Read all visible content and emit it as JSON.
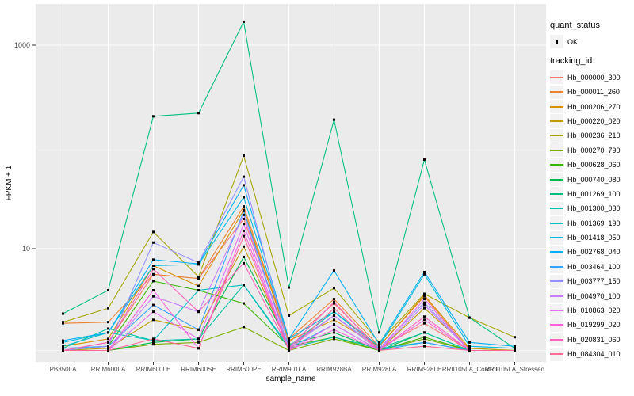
{
  "chart_data": {
    "type": "line",
    "title": "",
    "xlabel": "sample_name",
    "ylabel": "FPKM + 1",
    "y_scale": "log10",
    "y_ticks": [
      {
        "value": 10,
        "label": "10"
      },
      {
        "value": 1000,
        "label": "1000"
      }
    ],
    "y_minor_ticks": [
      1,
      100
    ],
    "ylim": [
      0.9,
      2500
    ],
    "grid": true,
    "panel_bg": "#EBEBEB",
    "grid_color": "#FFFFFF",
    "point_color": "#000000",
    "categories": [
      "PB350LA",
      "RRIM600LA",
      "RRIM600LE",
      "RRIM600SE",
      "RRIM600PE",
      "RRIM901LA",
      "RRIM928BA",
      "RRIM928LA",
      "RRIM928LE",
      "RRII105LA_Control",
      "RRII105LA_Stressed"
    ],
    "series": [
      {
        "name": "Hb_000000_300",
        "color": "#F8766D",
        "values": [
          1.0,
          1.2,
          5.6,
          5.1,
          19.6,
          1.2,
          2.9,
          1.05,
          1.85,
          1.0,
          1.0
        ]
      },
      {
        "name": "Hb_000011_260",
        "color": "#EA8331",
        "values": [
          1.85,
          1.9,
          5.6,
          5.1,
          26,
          1.3,
          3.2,
          1.1,
          3.4,
          1.0,
          1.0
        ]
      },
      {
        "name": "Hb_000206_270",
        "color": "#D89000",
        "values": [
          1.1,
          1.3,
          6.8,
          4.3,
          24,
          1.25,
          2.0,
          1.1,
          3.5,
          1.05,
          1.0
        ]
      },
      {
        "name": "Hb_000220_020",
        "color": "#C09B00",
        "values": [
          1.0,
          1.05,
          2.0,
          1.6,
          10.5,
          1.1,
          2.2,
          1.0,
          2.6,
          1.05,
          1.0
        ]
      },
      {
        "name": "Hb_000236_210",
        "color": "#A3A500",
        "values": [
          1.9,
          2.6,
          14.6,
          5.3,
          82,
          2.2,
          4.1,
          1.2,
          3.6,
          2.1,
          1.35
        ]
      },
      {
        "name": "Hb_000270_790",
        "color": "#7CAE00",
        "values": [
          1.0,
          1.0,
          1.15,
          1.2,
          1.7,
          1.0,
          1.3,
          1.0,
          1.3,
          1.0,
          1.0
        ]
      },
      {
        "name": "Hb_000628_060",
        "color": "#39B600",
        "values": [
          1.0,
          1.1,
          4.8,
          3.9,
          2.9,
          1.1,
          1.35,
          1.0,
          1.35,
          1.0,
          1.0
        ]
      },
      {
        "name": "Hb_000740_080",
        "color": "#00BB4E",
        "values": [
          1.0,
          1.0,
          1.2,
          1.3,
          8.3,
          1.15,
          1.5,
          1.0,
          1.5,
          1.0,
          1.0
        ]
      },
      {
        "name": "Hb_001269_100",
        "color": "#00BF7D",
        "values": [
          2.3,
          3.9,
          200,
          215,
          1700,
          4.15,
          185,
          1.5,
          75,
          2.1,
          1.05
        ]
      },
      {
        "name": "Hb_001300_030",
        "color": "#00C1A3",
        "values": [
          1.05,
          1.64,
          1.25,
          1.3,
          4.4,
          1.05,
          1.35,
          1.05,
          1.5,
          1.0,
          1.0
        ]
      },
      {
        "name": "Hb_001369_190",
        "color": "#00BFC4",
        "values": [
          1.1,
          1.5,
          1.25,
          3.9,
          4.4,
          1.1,
          2.4,
          1.05,
          1.2,
          1.0,
          1.0
        ]
      },
      {
        "name": "Hb_001418_050",
        "color": "#00BAE0",
        "values": [
          1.2,
          1.5,
          6.8,
          7.0,
          32,
          1.3,
          2.4,
          1.1,
          5.6,
          1.1,
          1.05
        ]
      },
      {
        "name": "Hb_002768_040",
        "color": "#00B0F6",
        "values": [
          1.25,
          1.5,
          7.8,
          7.1,
          42,
          1.3,
          6.1,
          1.15,
          5.9,
          1.2,
          1.1
        ]
      },
      {
        "name": "Hb_003464_100",
        "color": "#35A2FF",
        "values": [
          1.05,
          1.1,
          2.8,
          1.6,
          23.5,
          1.05,
          1.8,
          1.0,
          1.2,
          1.0,
          1.0
        ]
      },
      {
        "name": "Hb_003777_150",
        "color": "#9590FF",
        "values": [
          1.0,
          1.1,
          11.5,
          7.3,
          51,
          1.1,
          2.2,
          1.05,
          2.95,
          1.0,
          1.0
        ]
      },
      {
        "name": "Hb_004970_100",
        "color": "#C77CFF",
        "values": [
          1.0,
          1.0,
          3.4,
          2.4,
          21.5,
          1.05,
          2.2,
          1.0,
          2.8,
          1.0,
          1.0
        ]
      },
      {
        "name": "Hb_010863_020",
        "color": "#E76BF3",
        "values": [
          1.0,
          1.0,
          2.4,
          1.3,
          17.5,
          1.0,
          1.8,
          1.0,
          3.2,
          1.0,
          1.0
        ]
      },
      {
        "name": "Hb_019299_020",
        "color": "#FA62DB",
        "values": [
          1.0,
          1.0,
          3.9,
          1.05,
          15,
          1.0,
          1.6,
          1.0,
          2.0,
          1.0,
          1.0
        ]
      },
      {
        "name": "Hb_020831_060",
        "color": "#FF62BC",
        "values": [
          1.0,
          1.2,
          6.3,
          2.4,
          7.2,
          1.05,
          3.0,
          1.0,
          2.15,
          1.0,
          1.0
        ]
      },
      {
        "name": "Hb_084304_010",
        "color": "#FF6A98",
        "values": [
          1.0,
          1.0,
          1.3,
          1.05,
          13.3,
          1.0,
          2.6,
          1.0,
          1.1,
          1.0,
          1.0
        ]
      }
    ]
  },
  "legend": {
    "quant_status": {
      "title": "quant_status",
      "items": [
        {
          "label": "OK",
          "marker": "point",
          "color": "#000000"
        }
      ]
    },
    "tracking_id": {
      "title": "tracking_id"
    }
  }
}
